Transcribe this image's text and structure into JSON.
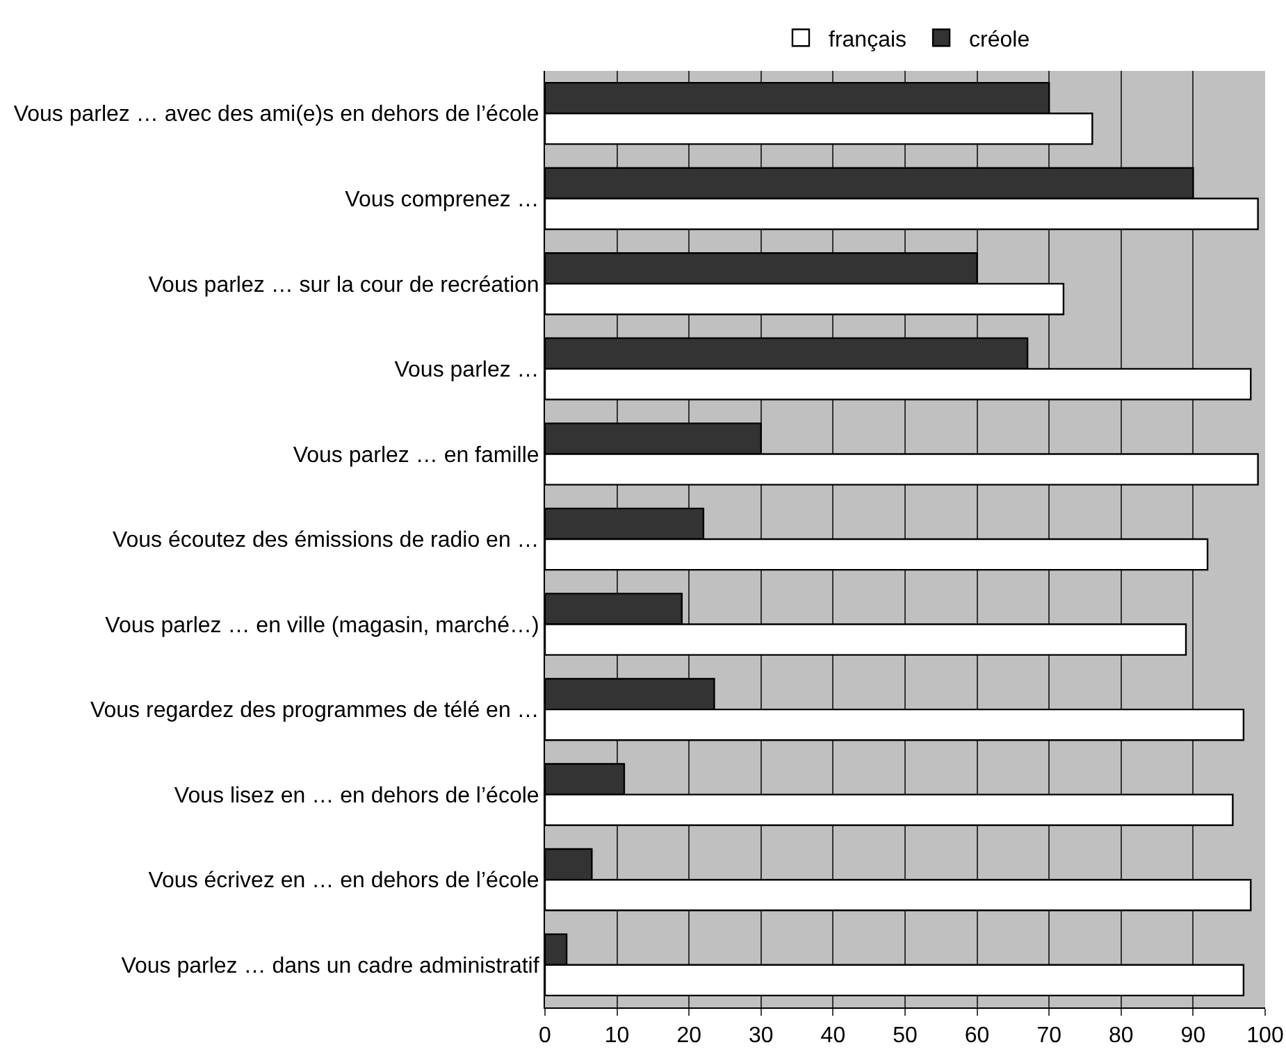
{
  "chart_data": {
    "type": "bar",
    "orientation": "horizontal",
    "categories": [
      "Vous parlez … avec des ami(e)s en dehors de l’école",
      "Vous comprenez …",
      "Vous parlez … sur la cour de recréation",
      "Vous parlez …",
      "Vous parlez … en famille",
      "Vous écoutez des émissions de radio en …",
      "Vous parlez … en ville (magasin, marché…)",
      "Vous regardez des programmes de télé en …",
      "Vous lisez en … en dehors de l’école",
      "Vous écrivez en … en dehors de l’école",
      "Vous parlez … dans un cadre administratif"
    ],
    "series": [
      {
        "name": "français",
        "color": "#ffffff",
        "values": [
          76,
          99,
          72,
          98,
          99,
          92,
          89,
          97,
          95.5,
          98,
          97
        ]
      },
      {
        "name": "créole",
        "color": "#333333",
        "values": [
          70,
          90,
          60,
          67,
          30,
          22,
          19,
          23.5,
          11,
          6.5,
          3
        ]
      }
    ],
    "xlim": [
      0,
      100
    ],
    "xticks": [
      0,
      10,
      20,
      30,
      40,
      50,
      60,
      70,
      80,
      90,
      100
    ],
    "grid": "x",
    "legend": "top"
  }
}
